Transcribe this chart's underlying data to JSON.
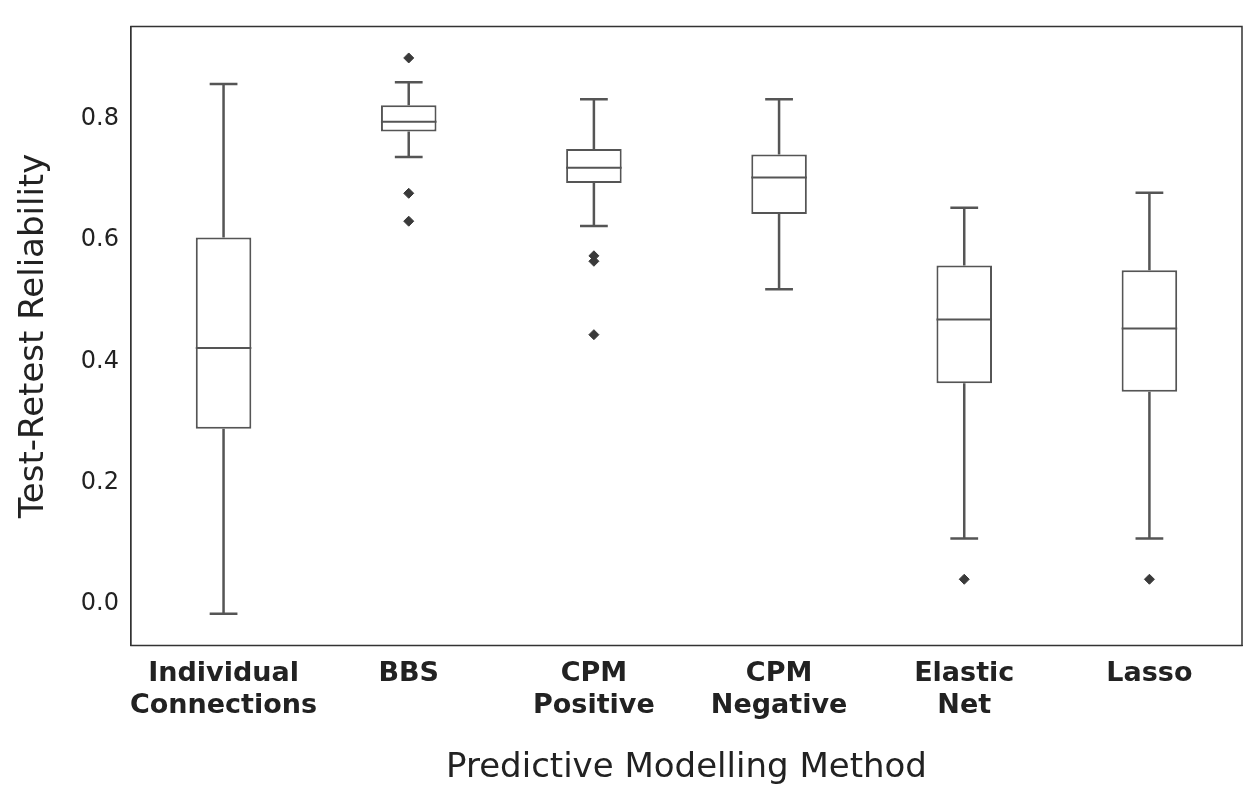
{
  "chart_data": {
    "type": "box",
    "xlabel": "Predictive Modelling Method",
    "ylabel": "Test-Retest Reliability",
    "categories": [
      "Individual Connections",
      "BBS",
      "CPM Positive",
      "CPM Negative",
      "Elastic Net",
      "Lasso"
    ],
    "ylim": [
      -0.068,
      0.952
    ],
    "yticks": [
      {
        "value": 0,
        "label": "0.0"
      },
      0.2,
      0.4,
      0.6,
      0.8
    ],
    "grid": false,
    "legend": false,
    "series": [
      {
        "color": "#555555",
        "boxes": [
          {
            "low": -0.016,
            "q1": 0.289,
            "median": 0.422,
            "q3": 0.604,
            "high": 0.857
          },
          {
            "low": 0.737,
            "q1": 0.779,
            "median": 0.795,
            "q3": 0.822,
            "high": 0.86,
            "outliers": [
              0.9,
              0.677,
              0.631
            ]
          },
          {
            "low": 0.623,
            "q1": 0.694,
            "median": 0.719,
            "q3": 0.75,
            "high": 0.832,
            "outliers": [
              0.574,
              0.565,
              0.444
            ]
          },
          {
            "low": 0.519,
            "q1": 0.643,
            "median": 0.703,
            "q3": 0.741,
            "high": 0.832
          },
          {
            "low": 0.108,
            "q1": 0.364,
            "median": 0.469,
            "q3": 0.558,
            "high": 0.653,
            "outliers": [
              0.041
            ]
          },
          {
            "low": 0.108,
            "q1": 0.35,
            "median": 0.454,
            "q3": 0.55,
            "high": 0.678,
            "outliers": [
              0.041
            ]
          }
        ]
      }
    ]
  }
}
